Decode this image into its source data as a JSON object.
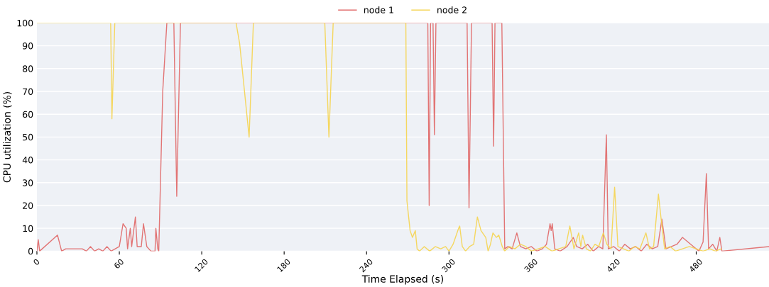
{
  "chart_data": {
    "type": "line",
    "xlabel": "Time Elapsed (s)",
    "ylabel": "CPU utilization (%)",
    "xlim": [
      0,
      533
    ],
    "ylim": [
      0,
      100
    ],
    "xticks": [
      0,
      60,
      120,
      180,
      240,
      300,
      360,
      420,
      480
    ],
    "yticks": [
      0,
      10,
      20,
      30,
      40,
      50,
      60,
      70,
      80,
      90,
      100
    ],
    "grid": "y",
    "legend": "top",
    "marker": "none",
    "line_style": "solid",
    "series": [
      {
        "name": "node 1",
        "color": "#e06666",
        "x": [
          0,
          1,
          2,
          15,
          18,
          21,
          33,
          36,
          39,
          42,
          45,
          48,
          51,
          54,
          57,
          60,
          62.7,
          65,
          66,
          68,
          69,
          71.7,
          73,
          76,
          77.6,
          80,
          83,
          86,
          86.6,
          88,
          88.7,
          91.6,
          94.6,
          99.7,
          101.8,
          104.5,
          284.6,
          285.6,
          286.6,
          288.4,
          289.4,
          290.5,
          313.2,
          314.6,
          316.4,
          331.4,
          332.5,
          333.5,
          338.5,
          340.6,
          343,
          346,
          349.4,
          352,
          356,
          360,
          364,
          368,
          371,
          373.6,
          374.4,
          375.2,
          377,
          381,
          386,
          390.5,
          393,
          397,
          401,
          405,
          409,
          412,
          414.6,
          416,
          420,
          424,
          428,
          432,
          436,
          440,
          444,
          448,
          452,
          455,
          458,
          462,
          466,
          470,
          474,
          478,
          482,
          485,
          487.4,
          489,
          492,
          495,
          497.2,
          498.7,
          533
        ],
        "values": [
          0,
          5,
          0,
          7,
          0,
          1,
          1,
          0,
          2,
          0,
          1,
          0,
          2,
          0,
          1,
          2,
          12,
          10,
          1,
          10,
          2,
          15,
          2,
          2,
          12,
          2,
          0,
          0,
          10,
          1,
          0,
          70,
          100,
          100,
          24,
          100,
          100,
          20,
          100,
          100,
          51,
          100,
          100,
          19,
          100,
          100,
          46,
          100,
          100,
          1,
          2,
          1,
          8,
          2,
          1,
          2,
          0,
          1,
          3,
          12,
          9,
          12,
          1,
          0,
          2,
          6,
          2,
          1,
          3,
          0,
          2,
          1,
          51,
          1,
          2,
          0,
          3,
          1,
          2,
          0,
          3,
          1,
          2,
          14,
          1,
          2,
          3,
          6,
          4,
          2,
          0,
          4,
          34,
          1,
          3,
          0,
          6,
          0,
          2
        ]
      },
      {
        "name": "node 2",
        "color": "#f5d44f",
        "x": [
          0,
          53.7,
          54.6,
          56.7,
          145,
          147.6,
          154.5,
          157.6,
          209.6,
          212.6,
          215.7,
          268.6,
          269.4,
          271.7,
          273.4,
          275.5,
          276.8,
          278.6,
          282,
          286,
          290,
          294,
          297.5,
          300,
          303,
          307,
          307.8,
          309.7,
          312.1,
          315,
          318,
          320.7,
          323.3,
          326.8,
          328.5,
          330.2,
          332,
          334.5,
          336.3,
          338.8,
          340.6,
          344,
          348,
          352,
          356,
          360,
          365,
          370,
          375,
          380,
          385,
          388,
          391,
          394.4,
          396,
          397.3,
          400,
          403,
          406.3,
          409,
          412.4,
          415,
          418,
          420.6,
          423,
          427,
          431,
          435,
          439,
          443.4,
          446,
          449,
          452.5,
          454.3,
          457,
          461,
          465,
          470,
          475,
          480,
          485,
          490,
          494,
          498.2
        ],
        "values": [
          100,
          100,
          58,
          100,
          100,
          91,
          50,
          100,
          100,
          50,
          100,
          100,
          22,
          9,
          6,
          9,
          1,
          0,
          2,
          0,
          2,
          1,
          2,
          0,
          3,
          10,
          11,
          2,
          0,
          2,
          3,
          15,
          9,
          6,
          0,
          3,
          8,
          6,
          7,
          2,
          0,
          2,
          1,
          3,
          2,
          0,
          1,
          2,
          0,
          1,
          2,
          11,
          1,
          8,
          2,
          7,
          1,
          0,
          3,
          2,
          8,
          3,
          1,
          28,
          2,
          1,
          0,
          2,
          1,
          8,
          1,
          2,
          25,
          15,
          1,
          2,
          0,
          1,
          2,
          1,
          0,
          1,
          0,
          1
        ]
      }
    ]
  }
}
